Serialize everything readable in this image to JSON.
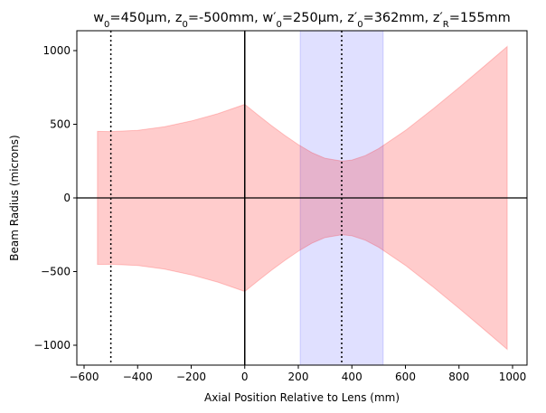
{
  "chart_data": {
    "type": "fill_between",
    "title_parts": [
      "w",
      "0",
      "=450µm, z",
      "0",
      "=-500mm, w′",
      "0",
      "=250µm, z′",
      "0",
      "=362mm, z′",
      "R",
      "=155mm"
    ],
    "xlabel": "Axial Position Relative to Lens (mm)",
    "ylabel": "Beam Radius (microns)",
    "x": [
      -550,
      -500,
      -400,
      -300,
      -200,
      -100,
      0,
      0,
      50,
      100,
      150,
      200,
      250,
      300,
      362,
      400,
      450,
      500,
      600,
      700,
      800,
      900,
      980
    ],
    "upper": [
      452,
      450,
      459,
      483,
      522,
      572,
      635,
      635,
      562,
      491,
      424,
      362,
      308,
      269,
      250,
      257,
      287,
      335,
      458,
      600,
      749,
      903,
      1028
    ],
    "lower": [
      -452,
      -450,
      -459,
      -483,
      -522,
      -572,
      -635,
      -635,
      -562,
      -491,
      -424,
      -362,
      -308,
      -269,
      -250,
      -257,
      -287,
      -335,
      -458,
      -600,
      -749,
      -903,
      -1028
    ],
    "color": "#ff0000",
    "span": [
      207,
      517
    ],
    "span_color": "#0000ff",
    "dotted_vlines": [
      -500,
      362
    ],
    "solid_vline": 0,
    "hline": 0,
    "xlim": [
      -627,
      1054
    ],
    "ylim": [
      -1135,
      1135
    ],
    "xticks": [
      {
        "value": -600,
        "label": "−600"
      },
      {
        "value": -400,
        "label": "−400"
      },
      {
        "value": -200,
        "label": "−200"
      },
      0,
      200,
      400,
      600,
      800,
      1000
    ],
    "yticks": [
      {
        "value": -1000,
        "label": "−1000"
      },
      {
        "value": -500,
        "label": "−500"
      },
      0,
      500,
      1000
    ]
  }
}
